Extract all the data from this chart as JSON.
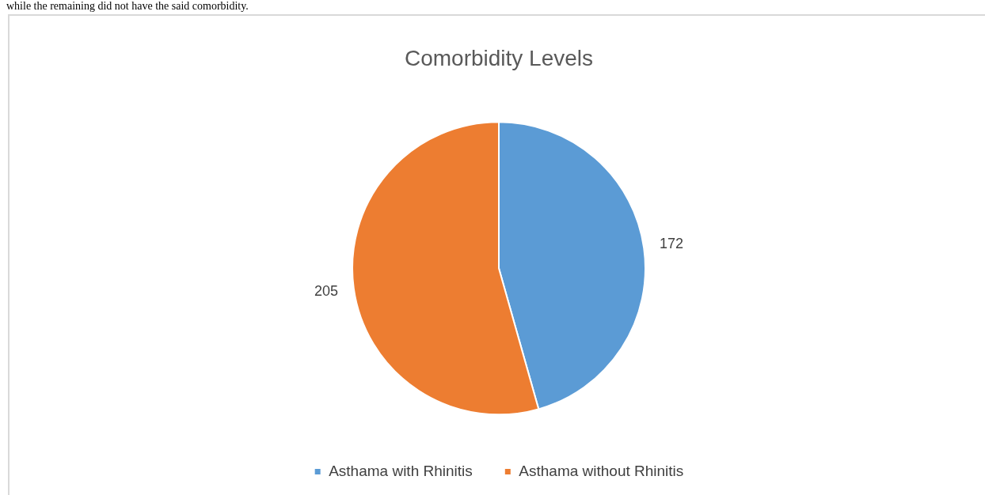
{
  "chart_data": {
    "type": "pie",
    "title": "Comorbidity Levels",
    "categories": [
      "Asthama with Rhinitis",
      "Asthama without Rhinitis"
    ],
    "values": [
      172,
      205
    ],
    "colors": [
      "#5b9bd5",
      "#ed7d31"
    ],
    "data_labels": true,
    "legend": "bottom",
    "annotations": [
      "while the remaining did not have the said comorbidity."
    ]
  }
}
